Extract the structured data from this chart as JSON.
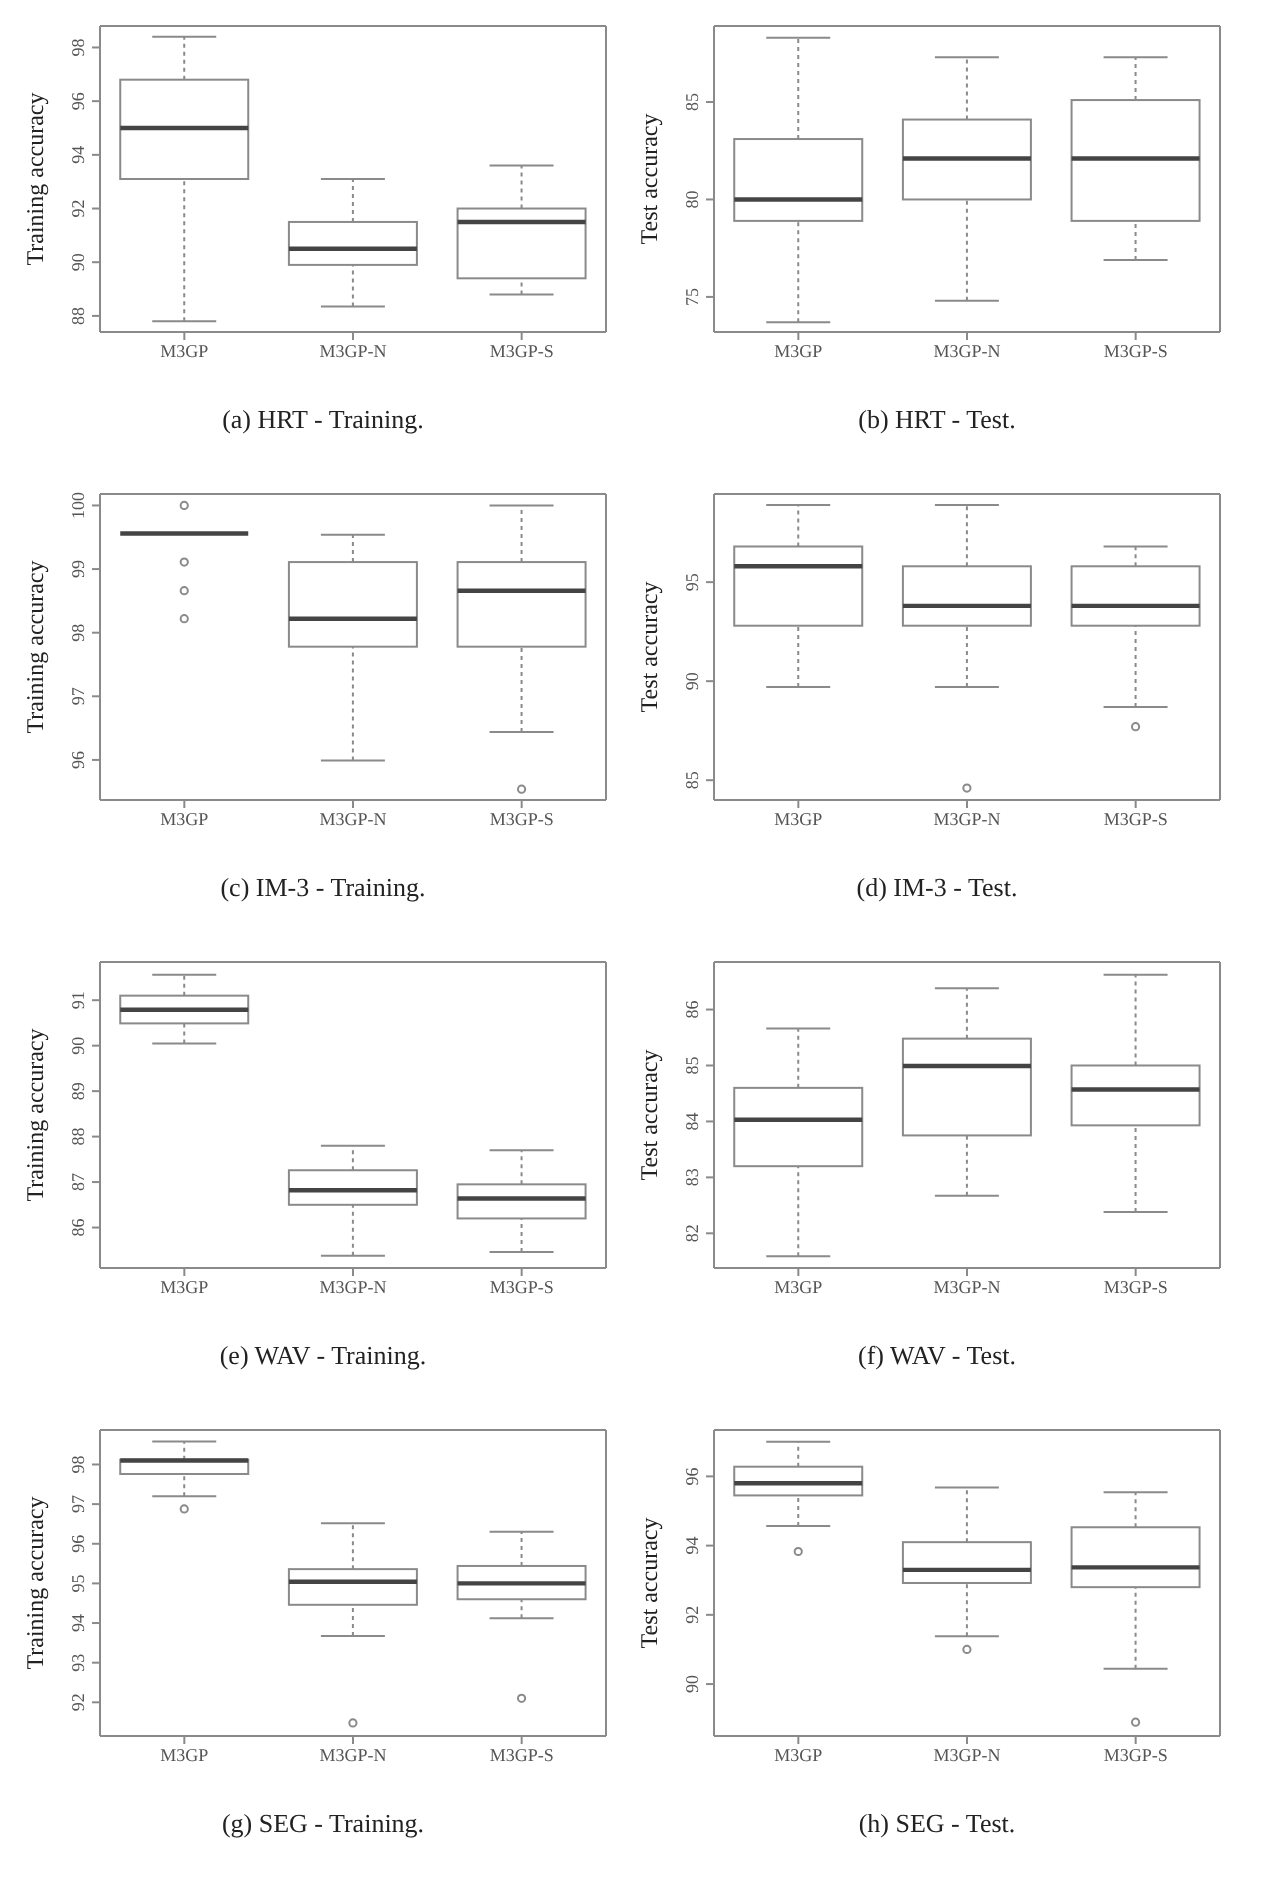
{
  "chart_data": [
    {
      "type": "box",
      "title": "(a) HRT - Training.",
      "ylabel": "Training accuracy",
      "categories": [
        "M3GP",
        "M3GP-N",
        "M3GP-S"
      ],
      "ylim": [
        87.4,
        98.8
      ],
      "yticks": [
        88,
        90,
        92,
        94,
        96,
        98
      ],
      "boxes": [
        {
          "low": 87.8,
          "q1": 93.1,
          "median": 95.0,
          "q3": 96.8,
          "high": 98.4
        },
        {
          "low": 88.35,
          "q1": 89.9,
          "median": 90.5,
          "q3": 91.5,
          "high": 93.1
        },
        {
          "low": 88.8,
          "q1": 89.4,
          "median": 91.5,
          "q3": 92.0,
          "high": 93.6
        }
      ]
    },
    {
      "type": "box",
      "title": "(b) HRT - Test.",
      "ylabel": "Test accuracy",
      "categories": [
        "M3GP",
        "M3GP-N",
        "M3GP-S"
      ],
      "ylim": [
        73.2,
        88.9
      ],
      "yticks": [
        75,
        80,
        85
      ],
      "boxes": [
        {
          "low": 73.7,
          "q1": 78.9,
          "median": 80.0,
          "q3": 83.1,
          "high": 88.3
        },
        {
          "low": 74.8,
          "q1": 80.0,
          "median": 82.1,
          "q3": 84.1,
          "high": 87.3
        },
        {
          "low": 76.9,
          "q1": 78.9,
          "median": 82.1,
          "q3": 85.1,
          "high": 87.3
        }
      ]
    },
    {
      "type": "box",
      "title": "(c) IM-3 - Training.",
      "ylabel": "Training accuracy",
      "categories": [
        "M3GP",
        "M3GP-N",
        "M3GP-S"
      ],
      "ylim": [
        95.37,
        100.18
      ],
      "yticks": [
        96,
        97,
        98,
        99,
        100
      ],
      "boxes": [
        {
          "low": 99.56,
          "q1": 99.56,
          "median": 99.56,
          "q3": 99.56,
          "high": 99.56,
          "outliers": [
            100.0,
            99.11,
            98.66,
            98.22
          ]
        },
        {
          "low": 95.99,
          "q1": 97.78,
          "median": 98.22,
          "q3": 99.11,
          "high": 99.54
        },
        {
          "low": 96.44,
          "q1": 97.78,
          "median": 98.66,
          "q3": 99.11,
          "high": 100.0,
          "outliers": [
            95.54
          ]
        }
      ]
    },
    {
      "type": "box",
      "title": "(d) IM-3 - Test.",
      "ylabel": "Test accuracy",
      "categories": [
        "M3GP",
        "M3GP-N",
        "M3GP-S"
      ],
      "ylim": [
        84.0,
        99.45
      ],
      "yticks": [
        85,
        90,
        95
      ],
      "boxes": [
        {
          "low": 89.7,
          "q1": 92.8,
          "median": 95.8,
          "q3": 96.8,
          "high": 98.9
        },
        {
          "low": 89.7,
          "q1": 92.8,
          "median": 93.8,
          "q3": 95.8,
          "high": 98.9,
          "outliers": [
            84.6
          ]
        },
        {
          "low": 88.7,
          "q1": 92.8,
          "median": 93.8,
          "q3": 95.8,
          "high": 96.8,
          "outliers": [
            87.7
          ]
        }
      ]
    },
    {
      "type": "box",
      "title": "(e) WAV - Training.",
      "ylabel": "Training accuracy",
      "categories": [
        "M3GP",
        "M3GP-N",
        "M3GP-S"
      ],
      "ylim": [
        85.11,
        91.84
      ],
      "yticks": [
        86,
        87,
        88,
        89,
        90,
        91
      ],
      "boxes": [
        {
          "low": 90.05,
          "q1": 90.49,
          "median": 90.79,
          "q3": 91.1,
          "high": 91.56
        },
        {
          "low": 85.38,
          "q1": 86.5,
          "median": 86.82,
          "q3": 87.26,
          "high": 87.8
        },
        {
          "low": 85.46,
          "q1": 86.2,
          "median": 86.64,
          "q3": 86.95,
          "high": 87.7
        }
      ]
    },
    {
      "type": "box",
      "title": "(f) WAV - Test.",
      "ylabel": "Test accuracy",
      "categories": [
        "M3GP",
        "M3GP-N",
        "M3GP-S"
      ],
      "ylim": [
        81.38,
        86.85
      ],
      "yticks": [
        82,
        83,
        84,
        85,
        86
      ],
      "boxes": [
        {
          "low": 81.59,
          "q1": 83.2,
          "median": 84.03,
          "q3": 84.6,
          "high": 85.66
        },
        {
          "low": 82.67,
          "q1": 83.75,
          "median": 84.99,
          "q3": 85.48,
          "high": 86.38
        },
        {
          "low": 82.38,
          "q1": 83.93,
          "median": 84.57,
          "q3": 85.0,
          "high": 86.62
        }
      ]
    },
    {
      "type": "box",
      "title": "(g) SEG - Training.",
      "ylabel": "Training accuracy",
      "categories": [
        "M3GP",
        "M3GP-N",
        "M3GP-S"
      ],
      "ylim": [
        91.15,
        98.87
      ],
      "yticks": [
        92,
        93,
        94,
        95,
        96,
        97,
        98
      ],
      "boxes": [
        {
          "low": 97.2,
          "q1": 97.76,
          "median": 98.1,
          "q3": 98.12,
          "high": 98.58,
          "outliers": [
            96.88
          ]
        },
        {
          "low": 93.67,
          "q1": 94.46,
          "median": 95.04,
          "q3": 95.36,
          "high": 96.52,
          "outliers": [
            91.48
          ]
        },
        {
          "low": 94.12,
          "q1": 94.6,
          "median": 95.0,
          "q3": 95.44,
          "high": 96.3,
          "outliers": [
            92.1
          ]
        }
      ]
    },
    {
      "type": "box",
      "title": "(h) SEG - Test.",
      "ylabel": "Test accuracy",
      "categories": [
        "M3GP",
        "M3GP-N",
        "M3GP-S"
      ],
      "ylim": [
        88.5,
        97.34
      ],
      "yticks": [
        90,
        92,
        94,
        96
      ],
      "boxes": [
        {
          "low": 94.57,
          "q1": 95.45,
          "median": 95.8,
          "q3": 96.28,
          "high": 97.0,
          "outliers": [
            93.83
          ]
        },
        {
          "low": 91.38,
          "q1": 92.92,
          "median": 93.3,
          "q3": 94.1,
          "high": 95.68,
          "outliers": [
            91.0
          ]
        },
        {
          "low": 90.44,
          "q1": 92.8,
          "median": 93.37,
          "q3": 94.53,
          "high": 95.54,
          "outliers": [
            88.9
          ]
        }
      ]
    }
  ]
}
